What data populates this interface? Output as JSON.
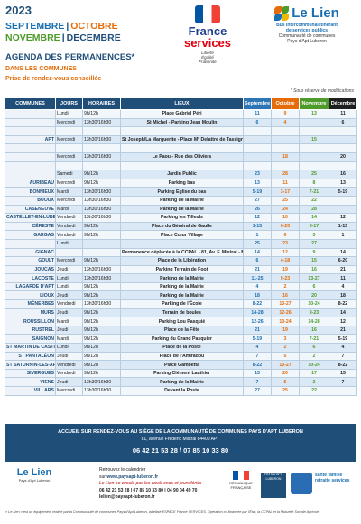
{
  "header": {
    "year": "2023",
    "months": [
      {
        "label": "SEPTEMBRE",
        "color": "#1a6fb0"
      },
      {
        "label": "|",
        "color": "#1f4e79"
      },
      {
        "label": "OCTOBRE",
        "color": "#e46c0a"
      },
      {
        "label": "NOVEMBRE",
        "color": "#4e9a2a"
      },
      {
        "label": "|",
        "color": "#1f4e79"
      },
      {
        "label": "DECEMBRE",
        "color": "#1f4e79"
      }
    ],
    "title": "AGENDA DES PERMANENCES*",
    "sub1": "DANS LES COMMUNES",
    "sub2": "Prise de rendez-vous conseillée",
    "france_services": {
      "line1": "France",
      "line2": "services",
      "motto": "Liberté\nÉgalité\nFraternité"
    },
    "le_lien": {
      "name": "Le Lien",
      "desc": "Bus intercommunal itinérant\nde services publics",
      "community": "Communauté de communes\nPays d'Apt Luberon"
    },
    "note": "* Sous réserve de modifications"
  },
  "table": {
    "headers": [
      "COMMUNES",
      "JOURS",
      "HORAIRES",
      "LIEUX",
      "Septembre",
      "Octobre",
      "Novembre",
      "Décembre"
    ],
    "rows": [
      {
        "commune": "",
        "jour": "Lundi",
        "horaire": "9h/12h",
        "lieu": "Place Gabriel Péri",
        "m": [
          "11",
          "9",
          "13",
          "11"
        ]
      },
      {
        "commune": "",
        "jour": "Mercredi",
        "horaire": "13h30/16h30",
        "lieu": "St Michel - Parking Jean Moulin",
        "m": [
          "6",
          "4",
          "",
          "6"
        ]
      },
      {
        "commune": "",
        "jour": "",
        "horaire": "",
        "lieu": "",
        "m": [
          "",
          "",
          "",
          ""
        ]
      },
      {
        "commune": "APT",
        "jour": "Mercredi",
        "horaire": "13h30/16h30",
        "lieu": "St Joseph/La Marguerite - Place Mª Delattre de Tassigny",
        "m": [
          "",
          "",
          "15",
          ""
        ]
      },
      {
        "commune": "",
        "jour": "",
        "horaire": "",
        "lieu": "",
        "m": [
          "",
          "",
          "",
          ""
        ]
      },
      {
        "commune": "",
        "jour": "Mercredi",
        "horaire": "13h30/16h30",
        "lieu": "Le Paou - Rue des Oliviers",
        "m": [
          "",
          "18",
          "",
          "20"
        ]
      },
      {
        "commune": "",
        "jour": "",
        "horaire": "",
        "lieu": "",
        "m": [
          "",
          "",
          "",
          ""
        ]
      },
      {
        "commune": "",
        "jour": "Samedi",
        "horaire": "9h/12h",
        "lieu": "Jardin Public",
        "m": [
          "23",
          "28",
          "25",
          "16"
        ]
      },
      {
        "commune": "AURIBEAU",
        "jour": "Mercredi",
        "horaire": "9h/12h",
        "lieu": "Parking bas",
        "m": [
          "13",
          "11",
          "8",
          "13"
        ]
      },
      {
        "commune": "BONNIEUX",
        "jour": "Mardi",
        "horaire": "13h30/16h30",
        "lieu": "Parking Eglise du bas",
        "m": [
          "5-19",
          "3-17",
          "7-21",
          "5-19"
        ]
      },
      {
        "commune": "BUOUX",
        "jour": "Mercredi",
        "horaire": "13h30/16h30",
        "lieu": "Parking de la Mairie",
        "m": [
          "27",
          "25",
          "22",
          ""
        ]
      },
      {
        "commune": "CASENEUVE",
        "jour": "Mardi",
        "horaire": "13h30/16h30",
        "lieu": "Parking de la Mairie",
        "m": [
          "26",
          "24",
          "28",
          ""
        ]
      },
      {
        "commune": "CASTELLET-EN-LUBERON",
        "jour": "Vendredi",
        "horaire": "13h30/16h30",
        "lieu": "Parking les Tilleuls",
        "m": [
          "12",
          "10",
          "14",
          "12"
        ]
      },
      {
        "commune": "CÉRESTE",
        "jour": "Vendredi",
        "horaire": "9h/12h",
        "lieu": "Place du Général de Gaulle",
        "m": [
          "1-15",
          "6-20",
          "3-17",
          "1-15"
        ]
      },
      {
        "commune": "GARGAS",
        "jour": "Vendredi",
        "horaire": "9h/12h",
        "lieu": "Place Cœur Village",
        "m": [
          "1",
          "6",
          "3",
          "1"
        ]
      },
      {
        "commune": "",
        "jour": "Lundi",
        "horaire": "",
        "lieu": "",
        "m": [
          "25",
          "23",
          "27",
          ""
        ]
      },
      {
        "commune": "GIGNAC",
        "jour": "",
        "horaire": "",
        "lieu": "Permanence déplacée à la CCPAL - 81, Av. F. Mistral - Mardi - 13h30/16h30",
        "m": [
          "14",
          "12",
          "9",
          "14"
        ]
      },
      {
        "commune": "GOULT",
        "jour": "Mercredi",
        "horaire": "9h/12h",
        "lieu": "Place de la Libération",
        "m": [
          "6",
          "4-18",
          "15",
          "6-20"
        ]
      },
      {
        "commune": "JOUCAS",
        "jour": "Jeudi",
        "horaire": "13h30/16h30",
        "lieu": "Parking Terrain de Foot",
        "m": [
          "21",
          "19",
          "16",
          "21"
        ]
      },
      {
        "commune": "LACOSTE",
        "jour": "Lundi",
        "horaire": "13h30/16h30",
        "lieu": "Parking de la Mairie",
        "m": [
          "11-25",
          "9-23",
          "13-27",
          "11"
        ]
      },
      {
        "commune": "LAGARDE D'APT",
        "jour": "Lundi",
        "horaire": "9h/12h",
        "lieu": "Parking de la Mairie",
        "m": [
          "4",
          "2",
          "6",
          "4"
        ]
      },
      {
        "commune": "LIOUX",
        "jour": "Jeudi",
        "horaire": "9h/12h",
        "lieu": "Parking de la Mairie",
        "m": [
          "18",
          "16",
          "20",
          "18"
        ]
      },
      {
        "commune": "MÉNERBES",
        "jour": "Vendredi",
        "horaire": "13h30/16h30",
        "lieu": "Parking de l'École",
        "m": [
          "8-22",
          "13-27",
          "10-24",
          "8-22"
        ]
      },
      {
        "commune": "MURS",
        "jour": "Jeudi",
        "horaire": "9h/12h",
        "lieu": "Terrain de boules",
        "m": [
          "14-28",
          "12-26",
          "9-23",
          "14"
        ]
      },
      {
        "commune": "ROUSSILLON",
        "jour": "Mardi",
        "horaire": "9h/12h",
        "lieu": "Parking Lou Pasquié",
        "m": [
          "12-26",
          "10-24",
          "14-28",
          "12"
        ]
      },
      {
        "commune": "RUSTREL",
        "jour": "Jeudi",
        "horaire": "9h/12h",
        "lieu": "Place de la Fête",
        "m": [
          "21",
          "19",
          "16",
          "21"
        ]
      },
      {
        "commune": "SAIGNON",
        "jour": "Mardi",
        "horaire": "9h/12h",
        "lieu": "Parking du Grand Pasquier",
        "m": [
          "5-19",
          "3",
          "7-21",
          "5-19"
        ]
      },
      {
        "commune": "ST MARTIN DE CASTILLON",
        "jour": "Lundi",
        "horaire": "9h/12h",
        "lieu": "Place de la Poste",
        "m": [
          "4",
          "2",
          "6",
          "4"
        ]
      },
      {
        "commune": "ST PANTALÉON",
        "jour": "Jeudi",
        "horaire": "9h/12h",
        "lieu": "Place de l'Amiradou",
        "m": [
          "7",
          "5",
          "2",
          "7"
        ]
      },
      {
        "commune": "ST SATURNIN-LES-APT",
        "jour": "Vendredi",
        "horaire": "9h/12h",
        "lieu": "Place Gambetta",
        "m": [
          "8-22",
          "13-27",
          "10-24",
          "8-22"
        ]
      },
      {
        "commune": "SIVERGUES",
        "jour": "Vendredi",
        "horaire": "9h/12h",
        "lieu": "Parking Clément Lauthier",
        "m": [
          "15",
          "20",
          "17",
          "15"
        ]
      },
      {
        "commune": "VIENS",
        "jour": "Jeudi",
        "horaire": "13h30/16h30",
        "lieu": "Parking de la Mairie",
        "m": [
          "7",
          "5",
          "2",
          "7"
        ]
      },
      {
        "commune": "VILLARS",
        "jour": "Mercredi",
        "horaire": "13h30/16h30",
        "lieu": "Devant la Poste",
        "m": [
          "27",
          "25",
          "22",
          ""
        ]
      }
    ]
  },
  "info": {
    "line1": "ACCUEIL SUR RENDEZ-VOUS AU SIÈGE DE LA COMMUNAUTÉ DE COMMUNES PAYS D'APT LUBERON",
    "line2": "81, avenue Frédéric Mistral 84400 APT",
    "phone": "06 42 21 53 28 / 07 85 10 33 80"
  },
  "footer": {
    "logo_name": "Le Lien",
    "logo_sub": "Pays d'Apt Luberon",
    "line1": "Retrouvez le calendrier",
    "line2_prefix": "sur ",
    "line2_link": "www.paysapt-luberon.fr",
    "line3": "Le Lien ne circule pas les week-ends et jours fériés",
    "line4": "06 42 21 53 28 | 07 85 10 33 80 | 04 90 04 49 70",
    "email": "lelien@paysapt-luberon.fr",
    "rf": "RÉPUBLIQUE FRANÇAISE",
    "pal": "PAYS D'APT LUBERON",
    "msa": "santé famille retraite services",
    "disclaimer": "« Le Lien » est un équipement réalisé par la Communauté de communes Pays d'Apt Luberon, labellisé ESPACE France SERVICES. Opération co-financée par l'État, la CCPAL et la Mutuelle Sociale Agricole."
  }
}
